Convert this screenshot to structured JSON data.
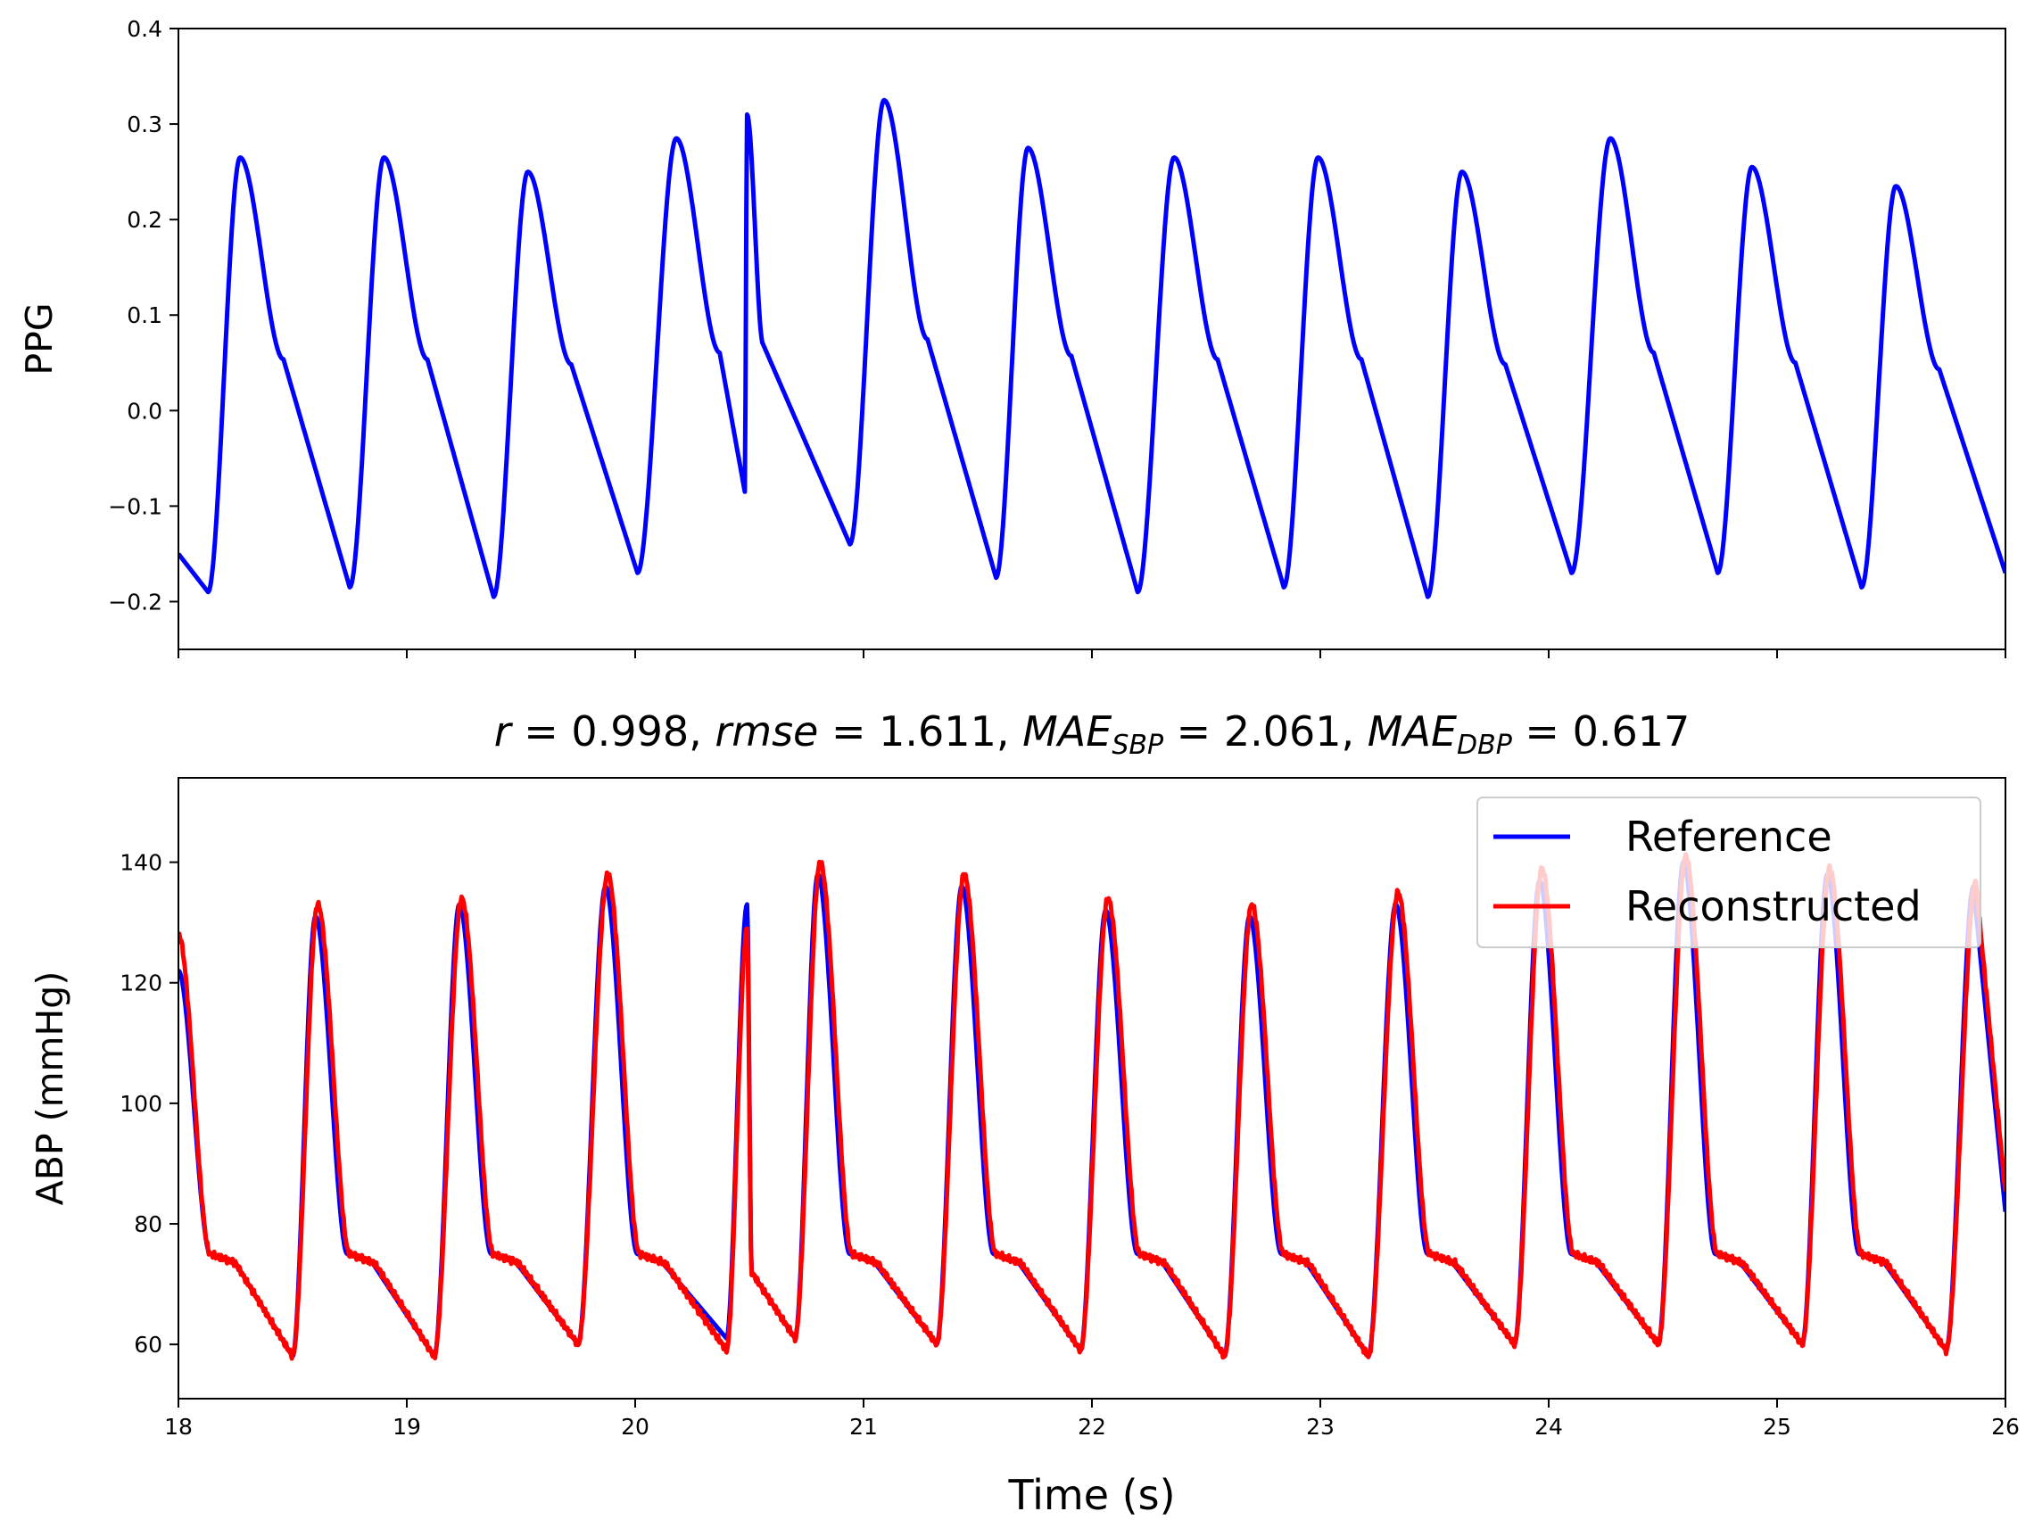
{
  "chart_data": [
    {
      "type": "line",
      "panel": "top",
      "title": "",
      "xlabel": "",
      "ylabel": "PPG",
      "xlim": [
        18,
        26
      ],
      "ylim": [
        -0.25,
        0.4
      ],
      "xticks": [
        18,
        19,
        20,
        21,
        22,
        23,
        24,
        25,
        26
      ],
      "show_xtick_labels": false,
      "yticks": [
        -0.2,
        -0.1,
        0.0,
        0.1,
        0.2,
        0.3,
        0.4
      ],
      "ytick_labels": [
        "−0.2",
        "−0.1",
        "0.0",
        "0.1",
        "0.2",
        "0.3",
        "0.4"
      ],
      "grid": false,
      "series": [
        {
          "name": "PPG",
          "color": "#0000ff",
          "start_value": -0.15,
          "end_value": -0.17,
          "beats": [
            {
              "trough_t": 18.13,
              "trough_v": -0.19,
              "peak_t": 18.27,
              "peak_v": 0.265
            },
            {
              "trough_t": 18.75,
              "trough_v": -0.185,
              "peak_t": 18.9,
              "peak_v": 0.265
            },
            {
              "trough_t": 19.38,
              "trough_v": -0.195,
              "peak_t": 19.53,
              "peak_v": 0.25
            },
            {
              "trough_t": 20.01,
              "trough_v": -0.17,
              "peak_t": 20.18,
              "peak_v": 0.285
            },
            {
              "trough_t": 20.48,
              "trough_v": -0.085,
              "peak_t": 20.49,
              "peak_v": 0.31,
              "sharp": true
            },
            {
              "trough_t": 20.94,
              "trough_v": -0.14,
              "peak_t": 21.09,
              "peak_v": 0.325
            },
            {
              "trough_t": 21.58,
              "trough_v": -0.175,
              "peak_t": 21.72,
              "peak_v": 0.275
            },
            {
              "trough_t": 22.2,
              "trough_v": -0.19,
              "peak_t": 22.36,
              "peak_v": 0.265
            },
            {
              "trough_t": 22.84,
              "trough_v": -0.185,
              "peak_t": 22.99,
              "peak_v": 0.265
            },
            {
              "trough_t": 23.47,
              "trough_v": -0.195,
              "peak_t": 23.62,
              "peak_v": 0.25
            },
            {
              "trough_t": 24.1,
              "trough_v": -0.17,
              "peak_t": 24.27,
              "peak_v": 0.285
            },
            {
              "trough_t": 24.74,
              "trough_v": -0.17,
              "peak_t": 24.89,
              "peak_v": 0.255
            },
            {
              "trough_t": 25.37,
              "trough_v": -0.185,
              "peak_t": 25.52,
              "peak_v": 0.235
            }
          ]
        }
      ]
    },
    {
      "type": "line",
      "panel": "bottom",
      "title": "r = 0.998, rmse = 1.611, MAE_SBP = 2.061, MAE_DBP = 0.617",
      "title_parts": {
        "r_label": "r",
        "r_value": " = 0.998, ",
        "rmse_label": "rmse",
        "rmse_value": " = 1.611, ",
        "mae_label": "MAE",
        "sbp_sub": "SBP",
        "sbp_value": " = 2.061, ",
        "dbp_sub": "DBP",
        "dbp_value": " = 0.617"
      },
      "xlabel": "Time (s)",
      "ylabel": "ABP (mmHg)",
      "xlim": [
        18,
        26
      ],
      "ylim": [
        51,
        154
      ],
      "xticks": [
        18,
        19,
        20,
        21,
        22,
        23,
        24,
        25,
        26
      ],
      "xtick_labels": [
        "18",
        "19",
        "20",
        "21",
        "22",
        "23",
        "24",
        "25",
        "26"
      ],
      "yticks": [
        60,
        80,
        100,
        120,
        140
      ],
      "ytick_labels": [
        "60",
        "80",
        "100",
        "120",
        "140"
      ],
      "grid": false,
      "legend": {
        "position": "top-right",
        "entries": [
          "Reference",
          "Reconstructed"
        ]
      },
      "series": [
        {
          "name": "Reference",
          "color": "#0000ff",
          "start_value": 122,
          "end_value": 82,
          "beats": [
            {
              "peak_t": 18.0,
              "peak_v": 122,
              "trough_t": 18.5,
              "trough_v": 58
            },
            {
              "peak_t": 18.6,
              "peak_v": 131,
              "trough_t": 19.12,
              "trough_v": 58
            },
            {
              "peak_t": 19.23,
              "peak_v": 133,
              "trough_t": 19.75,
              "trough_v": 60
            },
            {
              "peak_t": 19.87,
              "peak_v": 136,
              "trough_t": 20.4,
              "trough_v": 61
            },
            {
              "peak_t": 20.49,
              "peak_v": 133,
              "trough_t": 20.7,
              "trough_v": 61,
              "sharp": true
            },
            {
              "peak_t": 20.8,
              "peak_v": 138,
              "trough_t": 21.32,
              "trough_v": 60
            },
            {
              "peak_t": 21.43,
              "peak_v": 136,
              "trough_t": 21.95,
              "trough_v": 59
            },
            {
              "peak_t": 22.06,
              "peak_v": 132,
              "trough_t": 22.58,
              "trough_v": 58
            },
            {
              "peak_t": 22.69,
              "peak_v": 131,
              "trough_t": 23.21,
              "trough_v": 58
            },
            {
              "peak_t": 23.33,
              "peak_v": 133,
              "trough_t": 23.85,
              "trough_v": 60
            },
            {
              "peak_t": 23.96,
              "peak_v": 137,
              "trough_t": 24.48,
              "trough_v": 60
            },
            {
              "peak_t": 24.59,
              "peak_v": 140,
              "trough_t": 25.11,
              "trough_v": 60
            },
            {
              "peak_t": 25.22,
              "peak_v": 138,
              "trough_t": 25.74,
              "trough_v": 59
            },
            {
              "peak_t": 25.86,
              "peak_v": 136
            }
          ]
        },
        {
          "name": "Reconstructed",
          "color": "#ff0000",
          "start_value": 128,
          "end_value": 85,
          "beats": [
            {
              "peak_t": 18.0,
              "peak_v": 128,
              "trough_t": 18.5,
              "trough_v": 58
            },
            {
              "peak_t": 18.61,
              "peak_v": 133,
              "trough_t": 19.12,
              "trough_v": 58
            },
            {
              "peak_t": 19.24,
              "peak_v": 134,
              "trough_t": 19.75,
              "trough_v": 60
            },
            {
              "peak_t": 19.88,
              "peak_v": 138,
              "trough_t": 20.4,
              "trough_v": 59
            },
            {
              "peak_t": 20.49,
              "peak_v": 129,
              "trough_t": 20.7,
              "trough_v": 61,
              "sharp": true
            },
            {
              "peak_t": 20.81,
              "peak_v": 140,
              "trough_t": 21.32,
              "trough_v": 60
            },
            {
              "peak_t": 21.44,
              "peak_v": 138,
              "trough_t": 21.95,
              "trough_v": 59
            },
            {
              "peak_t": 22.07,
              "peak_v": 134,
              "trough_t": 22.58,
              "trough_v": 58
            },
            {
              "peak_t": 22.7,
              "peak_v": 133,
              "trough_t": 23.21,
              "trough_v": 58
            },
            {
              "peak_t": 23.34,
              "peak_v": 135,
              "trough_t": 23.85,
              "trough_v": 60
            },
            {
              "peak_t": 23.97,
              "peak_v": 139,
              "trough_t": 24.48,
              "trough_v": 60
            },
            {
              "peak_t": 24.6,
              "peak_v": 141,
              "trough_t": 25.11,
              "trough_v": 60
            },
            {
              "peak_t": 25.23,
              "peak_v": 139,
              "trough_t": 25.74,
              "trough_v": 59
            },
            {
              "peak_t": 25.87,
              "peak_v": 137
            }
          ]
        }
      ]
    }
  ]
}
